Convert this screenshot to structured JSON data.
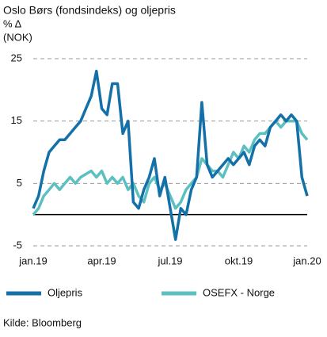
{
  "chart_data": {
    "type": "line",
    "title": "Oslo Børs (fondsindeks) og oljepris",
    "subtitle": "% Δ",
    "y_label": "(NOK)",
    "source": "Kilde: Bloomberg",
    "categories": [
      "jan.19",
      null,
      null,
      null,
      null,
      null,
      null,
      null,
      null,
      null,
      null,
      null,
      null,
      "apr.19",
      null,
      null,
      null,
      null,
      null,
      null,
      null,
      null,
      null,
      null,
      null,
      null,
      "jul.19",
      null,
      null,
      null,
      null,
      null,
      null,
      null,
      null,
      null,
      null,
      null,
      null,
      "okt.19",
      null,
      null,
      null,
      null,
      null,
      null,
      null,
      null,
      null,
      null,
      null,
      null,
      "jan.20"
    ],
    "series": [
      {
        "name": "Oljepris",
        "color": "#1470a8",
        "values": [
          1,
          3,
          7,
          10,
          11,
          12,
          12,
          13,
          14,
          15,
          17,
          19,
          23,
          17,
          16,
          21,
          21,
          13,
          15,
          2,
          1,
          4,
          6,
          9,
          3,
          6,
          1,
          -4,
          1,
          0,
          4,
          6,
          18,
          8,
          6,
          7,
          8,
          9,
          8,
          9,
          10,
          8,
          11,
          12,
          11,
          14,
          15,
          16,
          15,
          16,
          15,
          6,
          3
        ]
      },
      {
        "name": "OSEFX - Norge",
        "color": "#5cc0c0",
        "values": [
          0,
          1,
          3,
          4,
          5,
          4,
          5,
          6,
          5,
          6,
          6.5,
          7,
          6,
          7,
          5,
          6,
          5,
          6,
          4,
          5,
          3,
          2,
          5,
          6,
          4,
          5,
          3,
          1,
          2,
          4,
          5,
          6,
          9,
          8,
          7,
          7,
          6,
          8,
          10,
          9,
          11,
          10,
          12,
          13,
          13,
          14,
          15,
          14,
          15,
          15,
          15,
          13,
          12
        ]
      }
    ],
    "ylim": [
      -5,
      25
    ],
    "yticks": [
      -5,
      5,
      15,
      25
    ],
    "grid": true
  }
}
